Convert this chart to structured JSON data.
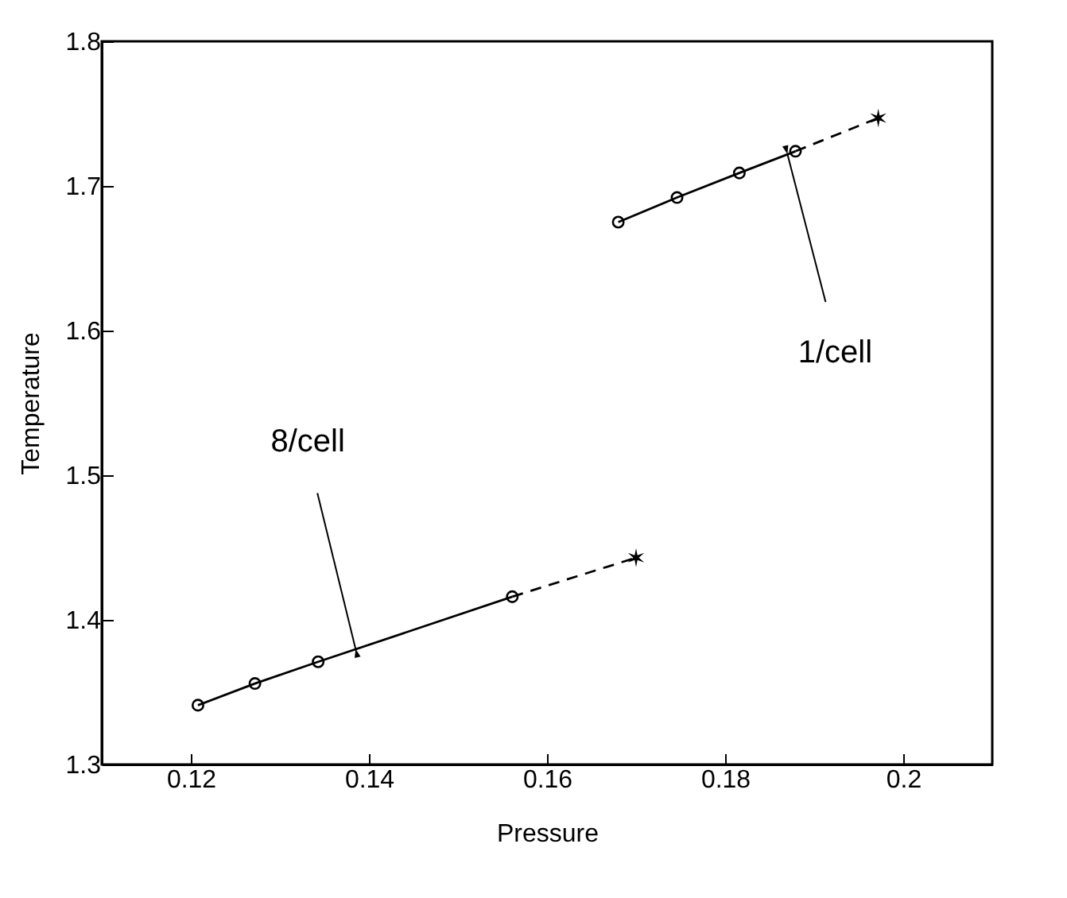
{
  "chart_data": {
    "type": "line",
    "xlabel": "Pressure",
    "ylabel": "Temperature",
    "xlim": [
      0.11,
      0.21
    ],
    "ylim": [
      1.3,
      1.8
    ],
    "xticks": [
      0.12,
      0.14,
      0.16,
      0.18,
      0.2
    ],
    "yticks": [
      1.3,
      1.4,
      1.5,
      1.6,
      1.7,
      1.8
    ],
    "series": [
      {
        "type": "line",
        "color": "#000000",
        "marker": "circle",
        "line_style": "solid",
        "x": [
          0.1208,
          0.1272,
          0.1343,
          0.1561
        ],
        "values": [
          1.341,
          1.356,
          1.371,
          1.416
        ]
      },
      {
        "type": "line",
        "color": "#000000",
        "marker": "none",
        "line_style": "dashed",
        "x": [
          0.1561,
          0.17
        ],
        "values": [
          1.416,
          1.443
        ]
      },
      {
        "type": "scatter",
        "color": "#000000",
        "marker": "cross",
        "x": [
          0.17
        ],
        "values": [
          1.443
        ]
      },
      {
        "type": "line",
        "color": "#000000",
        "marker": "circle",
        "line_style": "solid",
        "x": [
          0.168,
          0.1746,
          0.1816,
          0.1879
        ],
        "values": [
          1.675,
          1.692,
          1.709,
          1.724
        ]
      },
      {
        "type": "line",
        "color": "#000000",
        "marker": "none",
        "line_style": "dashed",
        "x": [
          0.1879,
          0.1972
        ],
        "values": [
          1.724,
          1.747
        ]
      },
      {
        "type": "scatter",
        "color": "#000000",
        "marker": "cross",
        "x": [
          0.1972
        ],
        "values": [
          1.747
        ]
      }
    ],
    "annotations": [
      {
        "text": "8/cell",
        "x": 0.1385,
        "y": 1.38
      },
      {
        "text": "1/cell",
        "x": 0.187,
        "y": 1.722
      }
    ]
  }
}
